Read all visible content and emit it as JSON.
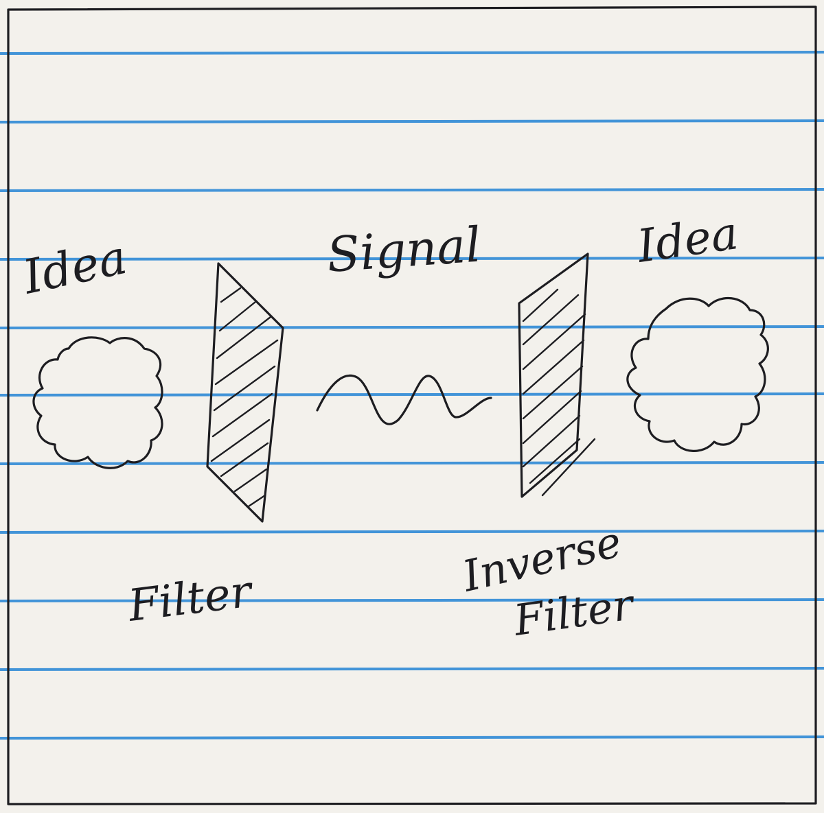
{
  "colors": {
    "paper": "#f3f1ec",
    "rule_line": "#2f8ad6",
    "ink": "#1d1d21"
  },
  "labels": {
    "idea_left": "Idea",
    "signal": "Signal",
    "idea_right": "Idea",
    "filter": "Filter",
    "inverse_filter_line1": "Inverse",
    "inverse_filter_line2": "Filter"
  }
}
